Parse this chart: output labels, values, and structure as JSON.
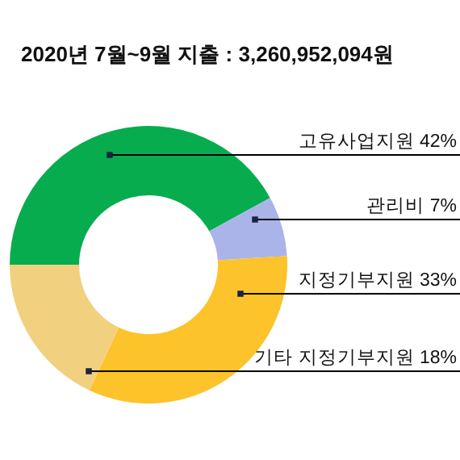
{
  "chart_data": {
    "type": "donut",
    "title": "2020년 7월~9월 지출 :  3,260,952,094원",
    "categories": [
      "고유사업지원",
      "관리비",
      "지정기부지원",
      "기타 지정기부지원"
    ],
    "values": [
      42,
      7,
      33,
      18
    ],
    "value_labels": [
      "42%",
      "7%",
      "33%",
      "18%"
    ],
    "colors": [
      "#07ac4f",
      "#abb4e8",
      "#fcc32a",
      "#f1d07f"
    ]
  }
}
